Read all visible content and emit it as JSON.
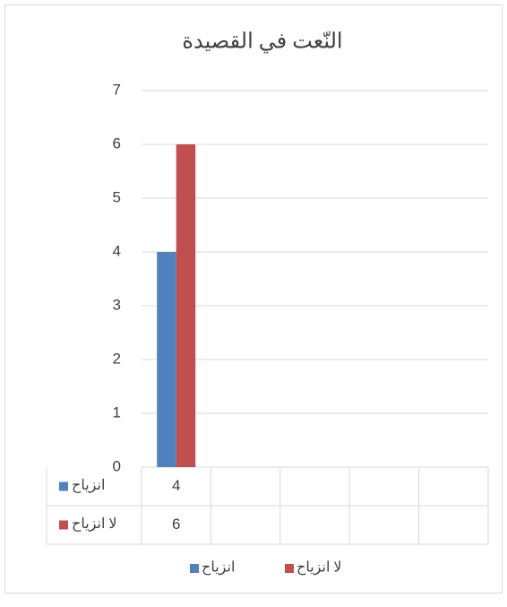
{
  "chart_data": {
    "type": "bar",
    "title": "النّعت في القصيدة",
    "categories": [
      null,
      null,
      null,
      null,
      null
    ],
    "series": [
      {
        "name": "انزياح",
        "color": "#4f81bd",
        "values": [
          4,
          null,
          null,
          null,
          null
        ]
      },
      {
        "name": "لا انزياح",
        "color": "#c0504d",
        "values": [
          6,
          null,
          null,
          null,
          null
        ]
      }
    ],
    "ylim": [
      0,
      7
    ],
    "yticks": [
      0,
      1,
      2,
      3,
      4,
      5,
      6,
      7
    ],
    "grid": true,
    "legend": "bottom"
  }
}
